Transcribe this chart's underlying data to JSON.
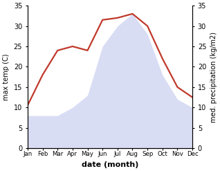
{
  "months": [
    "Jan",
    "Feb",
    "Mar",
    "Apr",
    "May",
    "Jun",
    "Jul",
    "Aug",
    "Sep",
    "Oct",
    "Nov",
    "Dec"
  ],
  "temperature": [
    10.5,
    18.0,
    24.0,
    25.0,
    24.0,
    31.5,
    32.0,
    33.0,
    30.0,
    22.0,
    15.0,
    12.5
  ],
  "precipitation": [
    8.0,
    8.0,
    8.0,
    10.0,
    13.0,
    25.0,
    30.0,
    33.0,
    28.0,
    18.0,
    12.0,
    10.0
  ],
  "temp_color": "#c0392b",
  "precip_color": "#aab4e8",
  "ylim": [
    0,
    35
  ],
  "yticks": [
    0,
    5,
    10,
    15,
    20,
    25,
    30,
    35
  ],
  "xlabel": "date (month)",
  "ylabel_left": "max temp (C)",
  "ylabel_right": "med. precipitation (kg/m2)",
  "background_color": "#ffffff",
  "temp_linewidth": 1.6
}
